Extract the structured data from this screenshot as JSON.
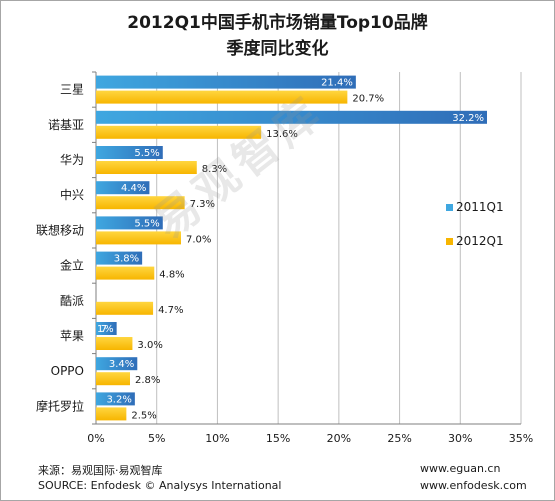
{
  "title_line1": "2012Q1中国手机市场销量Top10品牌",
  "title_line2": "季度同比变化",
  "watermark": "易观智库",
  "footer": {
    "source_cn": "来源：易观国际·易观智库",
    "source_en": "SOURCE:  Enfodesk © Analysys International",
    "url1": "www.eguan.cn",
    "url2": "www.enfodesk.com"
  },
  "colors": {
    "series_2011": "#2f6db8",
    "series_2011_light": "#3fa7e0",
    "series_2012": "#f7b500",
    "series_2012_light": "#ffd640",
    "grid": "#bfbfbf"
  },
  "chart_data": {
    "type": "bar",
    "orientation": "horizontal",
    "title": "2012Q1中国手机市场销量Top10品牌 季度同比变化",
    "categories": [
      "三星",
      "诺基亚",
      "华为",
      "中兴",
      "联想移动",
      "金立",
      "酷派",
      "苹果",
      "OPPO",
      "摩托罗拉"
    ],
    "series": [
      {
        "name": "2011Q1",
        "values": [
          21.4,
          32.2,
          5.5,
          4.4,
          5.5,
          3.8,
          0,
          1.7,
          3.4,
          3.2
        ],
        "labels": [
          "21.4%",
          "32.2%",
          "5.5%",
          "4.4%",
          "5.5%",
          "3.8%",
          "",
          "1.7%",
          "3.4%",
          "3.2%"
        ]
      },
      {
        "name": "2012Q1",
        "values": [
          20.7,
          13.6,
          8.3,
          7.3,
          7.0,
          4.8,
          4.7,
          3.0,
          2.8,
          2.5
        ],
        "labels": [
          "20.7%",
          "13.6%",
          "8.3%",
          "7.3%",
          "7.0%",
          "4.8%",
          "4.7%",
          "3.0%",
          "2.8%",
          "2.5%"
        ]
      }
    ],
    "xlim": [
      0,
      35
    ],
    "xticks": [
      "0%",
      "5%",
      "10%",
      "15%",
      "20%",
      "25%",
      "30%",
      "35%"
    ],
    "grid": true,
    "legend": "right"
  }
}
